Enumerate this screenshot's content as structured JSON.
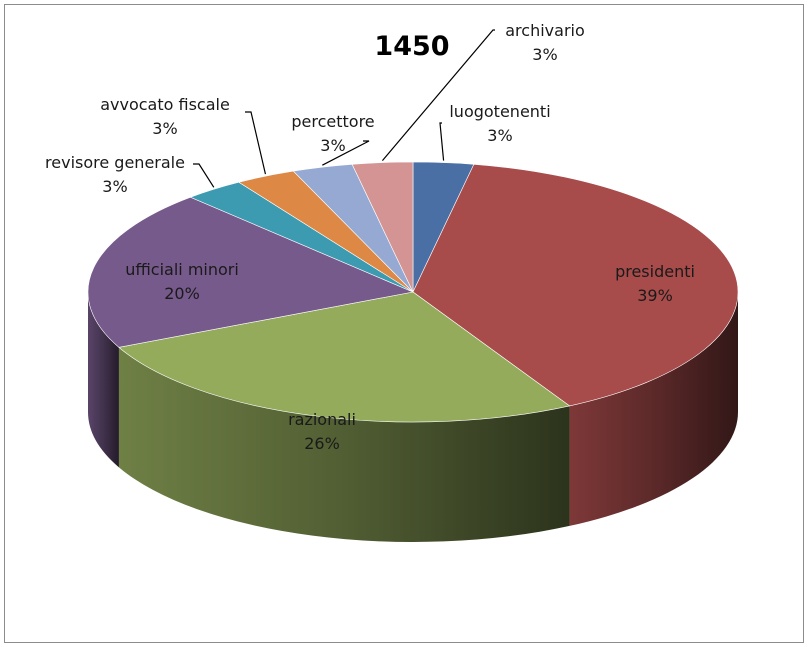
{
  "chart_data": {
    "type": "pie",
    "title": "1450",
    "slices": [
      {
        "name": "luogotenenti",
        "value": 3,
        "label": "3%",
        "color": "#4a6fa5"
      },
      {
        "name": "presidenti",
        "value": 39,
        "label": "39%",
        "color": "#a84b4b"
      },
      {
        "name": "razionali",
        "value": 26,
        "label": "26%",
        "color": "#94ab5c"
      },
      {
        "name": "ufficiali minori",
        "value": 20,
        "label": "20%",
        "color": "#775a8c"
      },
      {
        "name": "revisore generale",
        "value": 3,
        "label": "3%",
        "color": "#3c9bb0"
      },
      {
        "name": "avvocato fiscale",
        "value": 3,
        "label": "3%",
        "color": "#dd8844"
      },
      {
        "name": "percettore",
        "value": 3,
        "label": "3%",
        "color": "#96a9d2"
      },
      {
        "name": "archivario",
        "value": 3,
        "label": "3%",
        "color": "#d49494"
      }
    ],
    "legend": "none",
    "style": "3d-pie"
  }
}
